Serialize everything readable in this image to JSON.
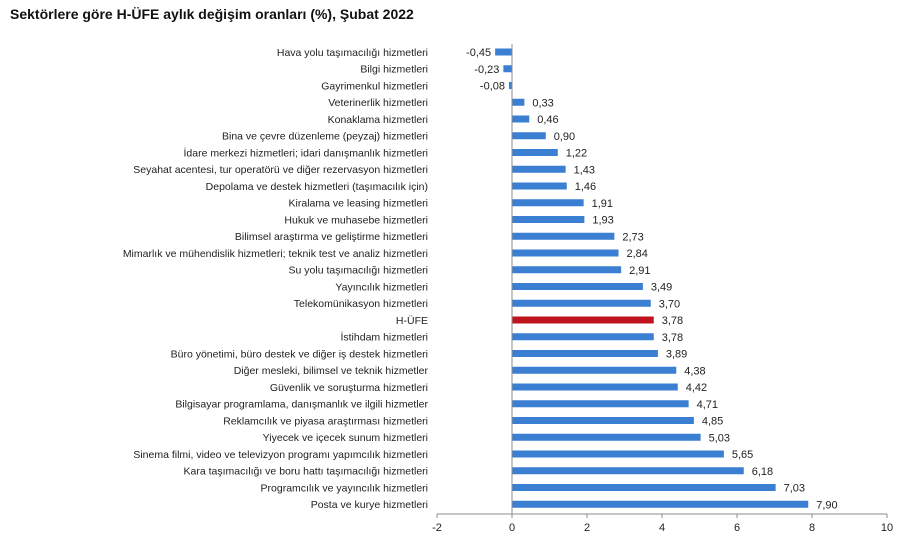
{
  "chart_data": {
    "type": "bar",
    "orientation": "horizontal",
    "title": "Sektörlere göre H-ÜFE aylık değişim oranları (%), Şubat 2022",
    "xlabel": "",
    "ylabel": "",
    "xlim": [
      -2,
      10
    ],
    "ticks": [
      -2,
      0,
      2,
      4,
      6,
      8,
      10
    ],
    "grid": false,
    "categories": [
      "Hava yolu taşımacılığı hizmetleri",
      "Bilgi hizmetleri",
      "Gayrimenkul hizmetleri",
      "Veterinerlik hizmetleri",
      "Konaklama hizmetleri",
      "Bina ve çevre düzenleme (peyzaj) hizmetleri",
      "İdare merkezi hizmetleri; idari danışmanlık hizmetleri",
      "Seyahat acentesi, tur operatörü ve diğer rezervasyon hizmetleri",
      "Depolama ve destek hizmetleri (taşımacılık için)",
      "Kiralama ve leasing hizmetleri",
      "Hukuk ve muhasebe hizmetleri",
      "Bilimsel araştırma ve geliştirme hizmetleri",
      "Mimarlık ve mühendislik hizmetleri; teknik test ve analiz hizmetleri",
      "Su yolu taşımacılığı hizmetleri",
      "Yayıncılık hizmetleri",
      "Telekomünikasyon hizmetleri",
      "H-ÜFE",
      "İstihdam hizmetleri",
      "Büro yönetimi, büro destek ve diğer iş destek hizmetleri",
      "Diğer mesleki, bilimsel ve teknik hizmetler",
      "Güvenlik ve soruşturma hizmetleri",
      "Bilgisayar programlama, danışmanlık ve ilgili hizmetler",
      "Reklamcılık ve piyasa araştırması hizmetleri",
      "Yiyecek ve içecek sunum hizmetleri",
      "Sinema filmi, video ve televizyon programı yapımcılık hizmetleri",
      "Kara taşımacılığı ve boru hattı taşımacılığı hizmetleri",
      "Programcılık ve yayıncılık hizmetleri",
      "Posta ve kurye hizmetleri"
    ],
    "values": [
      -0.45,
      -0.23,
      -0.08,
      0.33,
      0.46,
      0.9,
      1.22,
      1.43,
      1.46,
      1.91,
      1.93,
      2.73,
      2.84,
      2.91,
      3.49,
      3.7,
      3.78,
      3.78,
      3.89,
      4.38,
      4.42,
      4.71,
      4.85,
      5.03,
      5.65,
      6.18,
      7.03,
      7.9
    ],
    "value_labels": [
      "-0,45",
      "-0,23",
      "-0,08",
      "0,33",
      "0,46",
      "0,90",
      "1,22",
      "1,43",
      "1,46",
      "1,91",
      "1,93",
      "2,73",
      "2,84",
      "2,91",
      "3,49",
      "3,70",
      "3,78",
      "3,78",
      "3,89",
      "4,38",
      "4,42",
      "4,71",
      "4,85",
      "5,03",
      "5,65",
      "6,18",
      "7,03",
      "7,90"
    ],
    "highlight": "H-ÜFE",
    "colors": {
      "bar": "#3a7fd1",
      "highlight": "#c0141c",
      "axis": "#8c8c8c"
    }
  }
}
